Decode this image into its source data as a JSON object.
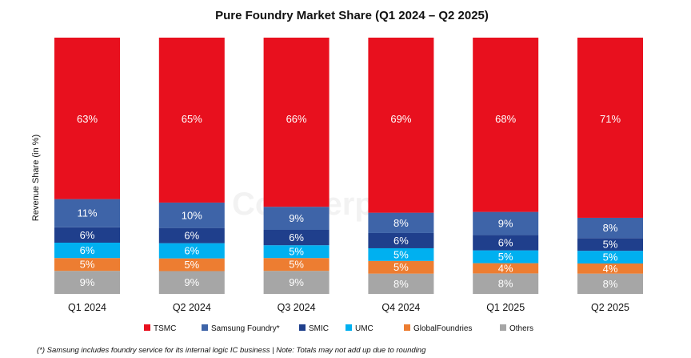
{
  "chart_data": {
    "type": "bar",
    "stacked": true,
    "title": "Pure Foundry Market Share (Q1 2024 – Q2 2025)",
    "xlabel": "",
    "ylabel": "Revenue Share (in %)",
    "ylim": [
      0,
      100
    ],
    "categories": [
      "Q1 2024",
      "Q2 2024",
      "Q3 2024",
      "Q4 2024",
      "Q1 2025",
      "Q2 2025"
    ],
    "series": [
      {
        "name": "Others",
        "color": "#a6a6a6",
        "values": [
          9,
          9,
          9,
          8,
          8,
          8
        ],
        "labels": [
          "9%",
          "9%",
          "9%",
          "8%",
          "8%",
          "8%"
        ]
      },
      {
        "name": "GlobalFoundries",
        "color": "#ed7d31",
        "values": [
          5,
          5,
          5,
          5,
          4,
          4
        ],
        "labels": [
          "5%",
          "5%",
          "5%",
          "5%",
          "4%",
          "4%"
        ]
      },
      {
        "name": "UMC",
        "color": "#00b0f0",
        "values": [
          6,
          6,
          5,
          5,
          5,
          5
        ],
        "labels": [
          "6%",
          "6%",
          "5%",
          "5%",
          "5%",
          "5%"
        ]
      },
      {
        "name": "SMIC",
        "color": "#1f3f8c",
        "values": [
          6,
          6,
          6,
          6,
          6,
          5
        ],
        "labels": [
          "6%",
          "6%",
          "6%",
          "6%",
          "6%",
          "5%"
        ]
      },
      {
        "name": "Samsung Foundry*",
        "color": "#3e64a8",
        "values": [
          11,
          10,
          9,
          8,
          9,
          8
        ],
        "labels": [
          "11%",
          "10%",
          "9%",
          "8%",
          "9%",
          "8%"
        ]
      },
      {
        "name": "TSMC",
        "color": "#e8101e",
        "values": [
          63,
          65,
          66,
          69,
          68,
          71
        ],
        "labels": [
          "63%",
          "65%",
          "66%",
          "69%",
          "68%",
          "71%"
        ]
      }
    ],
    "legend": {
      "position": "bottom",
      "order": [
        "TSMC",
        "Samsung Foundry*",
        "SMIC",
        "UMC",
        "GlobalFoundries",
        "Others"
      ]
    },
    "grid": false
  },
  "watermark": "Counterpoint",
  "footnote": "(*) Samsung includes foundry service for its internal logic IC business | Note: Totals may not add up due to rounding"
}
